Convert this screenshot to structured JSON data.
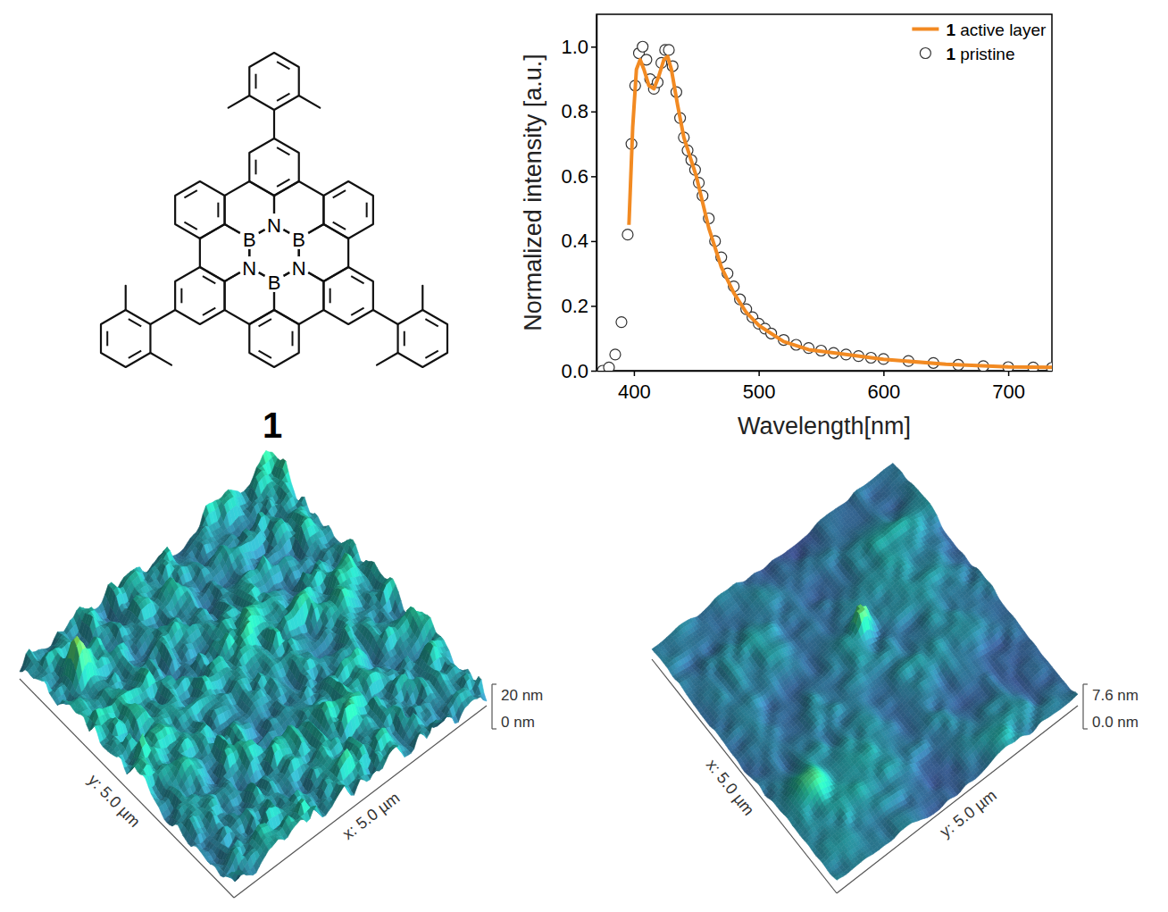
{
  "chart_data": {
    "type": "line",
    "x_label": "Wavelength[nm]",
    "y_label": "Normalized intensity [a.u.]",
    "xlim": [
      370,
      735
    ],
    "ylim": [
      0,
      1.1
    ],
    "xticks": [
      400,
      500,
      600,
      700
    ],
    "yticks": [
      {
        "value": 0,
        "label": "0.0"
      },
      {
        "value": 0.2,
        "label": "0.2"
      },
      {
        "value": 0.4,
        "label": "0.4"
      },
      {
        "value": 0.6,
        "label": "0.6"
      },
      {
        "value": 0.8,
        "label": "0.8"
      },
      {
        "value": 1.0,
        "label": "1.0"
      }
    ],
    "legend": "upper right",
    "series": [
      {
        "name": "1 active layer",
        "type": "line",
        "color": "#f28a22",
        "line_style": "solid",
        "x": [
          396,
          399,
          402,
          405,
          408,
          412,
          416,
          420,
          424,
          427,
          430,
          435,
          440,
          445,
          450,
          455,
          460,
          470,
          480,
          490,
          500,
          520,
          540,
          560,
          600,
          650,
          700,
          735
        ],
        "values": [
          0.45,
          0.75,
          0.93,
          0.96,
          0.93,
          0.88,
          0.87,
          0.91,
          0.96,
          0.97,
          0.93,
          0.82,
          0.72,
          0.66,
          0.6,
          0.52,
          0.44,
          0.32,
          0.24,
          0.18,
          0.14,
          0.09,
          0.065,
          0.055,
          0.035,
          0.02,
          0.012,
          0.01
        ]
      },
      {
        "name": "1 pristine",
        "type": "scatter",
        "color": "#333333",
        "marker": "open circle",
        "x": [
          375,
          380,
          385,
          390,
          395,
          398,
          401,
          404,
          407,
          410,
          413,
          416,
          419,
          422,
          425,
          428,
          431,
          434,
          437,
          440,
          443,
          446,
          449,
          452,
          455,
          460,
          465,
          470,
          475,
          480,
          485,
          490,
          495,
          500,
          505,
          510,
          520,
          530,
          540,
          550,
          560,
          570,
          580,
          590,
          600,
          620,
          640,
          660,
          680,
          700,
          720,
          735
        ],
        "values": [
          0.0,
          0.01,
          0.05,
          0.15,
          0.42,
          0.7,
          0.88,
          0.98,
          1.0,
          0.96,
          0.9,
          0.87,
          0.89,
          0.95,
          0.99,
          0.99,
          0.94,
          0.86,
          0.78,
          0.72,
          0.68,
          0.65,
          0.62,
          0.58,
          0.54,
          0.47,
          0.4,
          0.35,
          0.3,
          0.26,
          0.22,
          0.19,
          0.165,
          0.145,
          0.13,
          0.115,
          0.095,
          0.08,
          0.07,
          0.062,
          0.055,
          0.05,
          0.045,
          0.04,
          0.036,
          0.03,
          0.024,
          0.018,
          0.014,
          0.011,
          0.01,
          0.009
        ]
      }
    ]
  },
  "structure": {
    "label": "1",
    "atoms": [
      "N",
      "B",
      "N",
      "B",
      "N",
      "B"
    ]
  },
  "afm_images": [
    {
      "x_label": "x: 5.0 µm",
      "y_label": "y: 5.0 µm",
      "z_top_label": "20 nm",
      "z_bottom_label": "0 nm"
    },
    {
      "x_label": "x: 5.0 µm",
      "y_label": "y: 5.0 µm",
      "z_top_label": "7.6 nm",
      "z_bottom_label": "0.0 nm"
    }
  ]
}
